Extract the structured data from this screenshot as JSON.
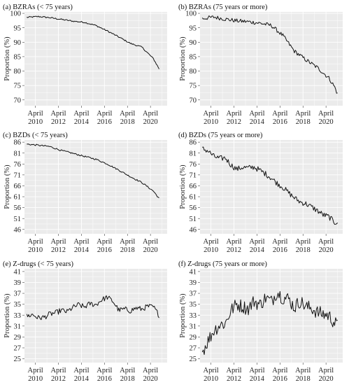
{
  "chart_data": [
    {
      "panel": "(a)",
      "title": "BZRAs (< 75 years)",
      "type": "line",
      "ylabel": "Proportion (%)",
      "ylim": [
        68,
        100.5
      ],
      "yticks": [
        70,
        75,
        80,
        85,
        90,
        95,
        100
      ],
      "xlim": [
        2009.3,
        2021.7
      ],
      "xticks": [
        2010.25,
        2012.25,
        2014.25,
        2016.25,
        2018.25,
        2020.25
      ],
      "xtick_labels": [
        "April 2010",
        "April 2012",
        "April 2014",
        "April 2016",
        "April 2018",
        "April 2020"
      ],
      "series": [
        {
          "x": [
            2009.5,
            2010.5,
            2011.5,
            2012.5,
            2013.5,
            2014.5,
            2015.5,
            2016.5,
            2017.5,
            2018.5,
            2019.5,
            2020.5,
            2021.0
          ],
          "y": [
            98.6,
            98.9,
            98.5,
            97.9,
            97.3,
            96.9,
            95.8,
            93.9,
            91.8,
            89.6,
            88.3,
            84.3,
            80.8
          ]
        }
      ]
    },
    {
      "panel": "(b)",
      "title": "BZRAs (75 years or more)",
      "type": "line",
      "ylabel": "Proportion (%)",
      "ylim": [
        68,
        100.5
      ],
      "yticks": [
        70,
        75,
        80,
        85,
        90,
        95,
        100
      ],
      "xlim": [
        2009.3,
        2021.7
      ],
      "xticks": [
        2010.25,
        2012.25,
        2014.25,
        2016.25,
        2018.25,
        2020.25
      ],
      "xtick_labels": [
        "April 2010",
        "April 2012",
        "April 2014",
        "April 2016",
        "April 2018",
        "April 2020"
      ],
      "series": [
        {
          "x": [
            2009.5,
            2010.5,
            2011.5,
            2012.5,
            2013.5,
            2014.5,
            2015.5,
            2016.5,
            2017.5,
            2018.5,
            2019.5,
            2020.5,
            2021.0,
            2021.3
          ],
          "y": [
            98.2,
            98.7,
            98.0,
            97.4,
            97.1,
            96.6,
            95.8,
            92.3,
            86.9,
            83.9,
            81.2,
            77.6,
            74.5,
            71.5
          ]
        }
      ]
    },
    {
      "panel": "(c)",
      "title": "BZDs (< 75 years)",
      "type": "line",
      "ylabel": "Proportion (%)",
      "ylim": [
        44,
        87
      ],
      "yticks": [
        46,
        51,
        56,
        61,
        66,
        71,
        76,
        81,
        86
      ],
      "xlim": [
        2009.3,
        2021.7
      ],
      "xticks": [
        2010.25,
        2012.25,
        2014.25,
        2016.25,
        2018.25,
        2020.25
      ],
      "xtick_labels": [
        "April 2010",
        "April 2012",
        "April 2014",
        "April 2016",
        "April 2018",
        "April 2020"
      ],
      "series": [
        {
          "x": [
            2009.5,
            2010.5,
            2011.5,
            2012.5,
            2013.5,
            2014.5,
            2015.5,
            2016.5,
            2017.5,
            2018.5,
            2019.5,
            2020.5,
            2021.0
          ],
          "y": [
            85.1,
            84.6,
            84.0,
            82.2,
            80.9,
            79.5,
            78.2,
            76.0,
            73.2,
            70.2,
            67.5,
            63.6,
            60.2
          ]
        }
      ]
    },
    {
      "panel": "(d)",
      "title": "BZDs (75 years or more)",
      "type": "line",
      "ylabel": "Proportion (%)",
      "ylim": [
        44,
        87
      ],
      "yticks": [
        46,
        51,
        56,
        61,
        66,
        71,
        76,
        81,
        86
      ],
      "xlim": [
        2009.3,
        2021.7
      ],
      "xticks": [
        2010.25,
        2012.25,
        2014.25,
        2016.25,
        2018.25,
        2020.25
      ],
      "xtick_labels": [
        "April 2010",
        "April 2012",
        "April 2014",
        "April 2016",
        "April 2018",
        "April 2020"
      ],
      "series": [
        {
          "x": [
            2009.5,
            2010.0,
            2010.5,
            2011.0,
            2011.5,
            2012.0,
            2012.5,
            2013.0,
            2013.5,
            2014.0,
            2014.5,
            2015.0,
            2015.5,
            2016.0,
            2016.5,
            2017.0,
            2017.5,
            2018.0,
            2018.5,
            2019.0,
            2019.5,
            2020.0,
            2020.5,
            2021.0,
            2021.3
          ],
          "y": [
            83.0,
            82.0,
            79.5,
            78.5,
            78.8,
            75.5,
            73.6,
            74.5,
            74.2,
            74.6,
            73.1,
            71.5,
            69.5,
            67.2,
            65.3,
            62.8,
            60.5,
            58.6,
            57.8,
            56.3,
            54.6,
            52.7,
            51.8,
            49.2,
            49.5
          ]
        }
      ]
    },
    {
      "panel": "(e)",
      "title": "Z-drugs (< 75 years)",
      "type": "line",
      "ylabel": "Proportion (%)",
      "ylim": [
        24.3,
        41.5
      ],
      "yticks": [
        25,
        27,
        29,
        31,
        33,
        35,
        37,
        39,
        41
      ],
      "xlim": [
        2009.3,
        2021.7
      ],
      "xticks": [
        2010.25,
        2012.25,
        2014.25,
        2016.25,
        2018.25,
        2020.25
      ],
      "xtick_labels": [
        "April 2010",
        "April 2012",
        "April 2014",
        "April 2016",
        "April 2018",
        "April 2020"
      ],
      "series": [
        {
          "x": [
            2009.5,
            2010.0,
            2010.5,
            2011.0,
            2011.5,
            2012.0,
            2012.5,
            2013.0,
            2013.5,
            2014.0,
            2014.5,
            2015.0,
            2015.5,
            2016.0,
            2016.5,
            2017.0,
            2017.5,
            2018.0,
            2018.5,
            2019.0,
            2019.5,
            2020.0,
            2020.5,
            2021.0
          ],
          "y": [
            32.8,
            33.1,
            32.5,
            32.6,
            33.2,
            33.4,
            33.9,
            33.6,
            34.4,
            34.9,
            34.5,
            35.1,
            34.9,
            35.8,
            36.3,
            35.5,
            33.9,
            34.1,
            33.8,
            34.3,
            34.1,
            34.6,
            34.5,
            33.0
          ]
        }
      ]
    },
    {
      "panel": "(f)",
      "title": "Z-drugs (75 years or more)",
      "type": "line",
      "ylabel": "Proportion (%)",
      "ylim": [
        24.3,
        41.5
      ],
      "yticks": [
        25,
        27,
        29,
        31,
        33,
        35,
        37,
        39,
        41
      ],
      "xlim": [
        2009.3,
        2021.7
      ],
      "xticks": [
        2010.25,
        2012.25,
        2014.25,
        2016.25,
        2018.25,
        2020.25
      ],
      "xtick_labels": [
        "April 2010",
        "April 2012",
        "April 2014",
        "April 2016",
        "April 2018",
        "April 2020"
      ],
      "series": [
        {
          "x": [
            2009.5,
            2010.0,
            2010.5,
            2011.0,
            2011.5,
            2012.0,
            2012.5,
            2013.0,
            2013.5,
            2014.0,
            2014.5,
            2015.0,
            2015.5,
            2016.0,
            2016.5,
            2017.0,
            2017.5,
            2018.0,
            2018.5,
            2019.0,
            2019.5,
            2020.0,
            2020.5,
            2021.0,
            2021.3
          ],
          "y": [
            26.3,
            28.3,
            30.2,
            31.2,
            31.5,
            33.9,
            35.0,
            34.6,
            34.2,
            35.6,
            34.9,
            36.2,
            35.5,
            37.3,
            36.2,
            36.0,
            34.4,
            35.6,
            34.5,
            34.3,
            33.5,
            33.2,
            32.9,
            31.6,
            30.9
          ]
        }
      ]
    }
  ]
}
